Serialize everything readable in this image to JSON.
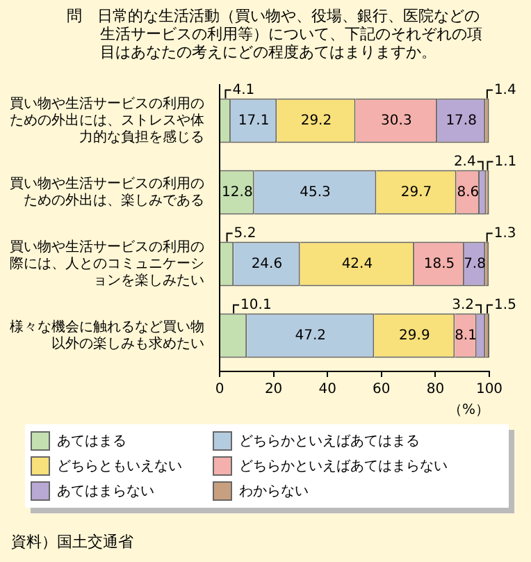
{
  "chart_data": {
    "type": "bar",
    "orientation": "horizontal",
    "stacked": true,
    "title": "問　日常的な生活活動（買い物や、役場、銀行、医院などの生活サービスの利用等）について、下記のそれぞれの項目はあなたの考えにどの程度あてはまりますか。",
    "categories": [
      "買い物や生活サービスの利用のための外出には、ストレスや体力的な負担を感じる",
      "買い物や生活サービスの利用のための外出は、楽しみである",
      "買い物や生活サービスの利用の際には、人とのコミュニケーションを楽しみたい",
      "様々な機会に触れるなど買い物以外の楽しみも求めたい"
    ],
    "series": [
      {
        "name": "あてはまる",
        "color": "#c4e0b0",
        "values": [
          4.1,
          12.8,
          5.2,
          10.1
        ]
      },
      {
        "name": "どちらかといえばあてはまる",
        "color": "#b4cce0",
        "values": [
          17.1,
          45.3,
          24.6,
          47.2
        ]
      },
      {
        "name": "どちらともいえない",
        "color": "#f8e07a",
        "values": [
          29.2,
          29.7,
          42.4,
          29.9
        ]
      },
      {
        "name": "どちらかといえばあてはまらない",
        "color": "#f4b0ac",
        "values": [
          30.3,
          8.6,
          18.5,
          8.1
        ]
      },
      {
        "name": "あてはまらない",
        "color": "#b8a8d4",
        "values": [
          17.8,
          2.4,
          7.8,
          3.2
        ]
      },
      {
        "name": "わからない",
        "color": "#c8a080",
        "values": [
          1.4,
          1.1,
          1.3,
          1.5
        ]
      }
    ],
    "xlim": [
      0,
      100
    ],
    "xticks": [
      0,
      20,
      40,
      60,
      80,
      100
    ],
    "xlabel": "（%）",
    "data_labels": true,
    "legend": "bottom",
    "grid": false,
    "annotations": [
      "資料）国土交通省"
    ]
  }
}
